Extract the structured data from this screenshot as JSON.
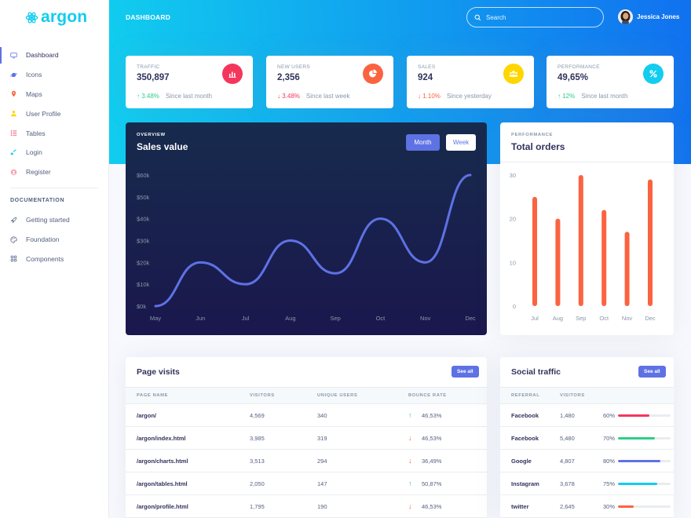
{
  "brand": {
    "name": "argon",
    "color": "#11cdef"
  },
  "sidebar": {
    "items": [
      {
        "label": "Dashboard",
        "icon": "tv-icon",
        "color": "#5e72e4"
      },
      {
        "label": "Icons",
        "icon": "planet-icon",
        "color": "#5e72e4"
      },
      {
        "label": "Maps",
        "icon": "pin-icon",
        "color": "#fb6340"
      },
      {
        "label": "User Profile",
        "icon": "user-icon",
        "color": "#ffd600"
      },
      {
        "label": "Tables",
        "icon": "list-icon",
        "color": "#f5365c"
      },
      {
        "label": "Login",
        "icon": "key-icon",
        "color": "#11cdef"
      },
      {
        "label": "Register",
        "icon": "circle-user-icon",
        "color": "#f3a4b5"
      }
    ],
    "doc_heading": "DOCUMENTATION",
    "doc_items": [
      {
        "label": "Getting started",
        "icon": "spaceship-icon"
      },
      {
        "label": "Foundation",
        "icon": "palette-icon"
      },
      {
        "label": "Components",
        "icon": "ui-icon"
      }
    ]
  },
  "header": {
    "title": "DASHBOARD",
    "search_placeholder": "Search",
    "user_name": "Jessica Jones"
  },
  "stats": [
    {
      "title": "TRAFFIC",
      "value": "350,897",
      "change": "3.48%",
      "direction": "up",
      "since": "Since last month",
      "icon": "chart-bar-icon",
      "color": "#f5365c"
    },
    {
      "title": "NEW USERS",
      "value": "2,356",
      "change": "3.48%",
      "direction": "down",
      "since": "Since last week",
      "icon": "chart-pie-icon",
      "color": "#fb6340"
    },
    {
      "title": "SALES",
      "value": "924",
      "change": "1.10%",
      "direction": "down-warn",
      "since": "Since yesterday",
      "icon": "users-icon",
      "color": "#ffd600"
    },
    {
      "title": "PERFORMANCE",
      "value": "49,65%",
      "change": "12%",
      "direction": "up",
      "since": "Since last month",
      "icon": "percent-icon",
      "color": "#11cdef"
    }
  ],
  "sales": {
    "subtitle": "OVERVIEW",
    "title": "Sales value",
    "btn_month": "Month",
    "btn_week": "Week"
  },
  "orders": {
    "subtitle": "PERFORMANCE",
    "title": "Total orders"
  },
  "chart_data": [
    {
      "type": "line",
      "title": "Sales value",
      "x": [
        "May",
        "Jun",
        "Jul",
        "Aug",
        "Sep",
        "Oct",
        "Nov",
        "Dec"
      ],
      "y_ticks": [
        "$0k",
        "$10k",
        "$20k",
        "$30k",
        "$40k",
        "$50k",
        "$60k"
      ],
      "ylim": [
        0,
        60
      ],
      "series": [
        {
          "values": [
            0,
            20,
            10,
            30,
            15,
            40,
            20,
            60
          ]
        }
      ],
      "color": "#5e72e4",
      "grid": false
    },
    {
      "type": "bar",
      "title": "Total orders",
      "categories": [
        "Jul",
        "Aug",
        "Sep",
        "Oct",
        "Nov",
        "Dec"
      ],
      "y_ticks": [
        "0",
        "10",
        "20",
        "30"
      ],
      "ylim": [
        0,
        30
      ],
      "values": [
        25,
        20,
        30,
        22,
        17,
        29
      ],
      "color": "#fb6340",
      "grid": false
    }
  ],
  "visits": {
    "title": "Page visits",
    "see_all": "See all",
    "headers": [
      "PAGE NAME",
      "VISITORS",
      "UNIQUE USERS",
      "BOUNCE RATE"
    ],
    "rows": [
      {
        "page": "/argon/",
        "visitors": "4,569",
        "unique": "340",
        "bounce": "46,53%",
        "dir": "up"
      },
      {
        "page": "/argon/index.html",
        "visitors": "3,985",
        "unique": "319",
        "bounce": "46,53%",
        "dir": "down"
      },
      {
        "page": "/argon/charts.html",
        "visitors": "3,513",
        "unique": "294",
        "bounce": "36,49%",
        "dir": "down"
      },
      {
        "page": "/argon/tables.html",
        "visitors": "2,050",
        "unique": "147",
        "bounce": "50,87%",
        "dir": "up"
      },
      {
        "page": "/argon/profile.html",
        "visitors": "1,795",
        "unique": "190",
        "bounce": "46,53%",
        "dir": "down"
      }
    ]
  },
  "social": {
    "title": "Social traffic",
    "see_all": "See all",
    "headers": [
      "REFERRAL",
      "VISITORS"
    ],
    "rows": [
      {
        "referral": "Facebook",
        "visitors": "1,480",
        "percent": "60%",
        "value": 60,
        "color": "#f5365c"
      },
      {
        "referral": "Facebook",
        "visitors": "5,480",
        "percent": "70%",
        "value": 70,
        "color": "#2dce89"
      },
      {
        "referral": "Google",
        "visitors": "4,807",
        "percent": "80%",
        "value": 80,
        "color": "#5e72e4"
      },
      {
        "referral": "Instagram",
        "visitors": "3,678",
        "percent": "75%",
        "value": 75,
        "color": "#11cdef"
      },
      {
        "referral": "twitter",
        "visitors": "2,645",
        "percent": "30%",
        "value": 30,
        "color": "#fb6340"
      }
    ]
  }
}
